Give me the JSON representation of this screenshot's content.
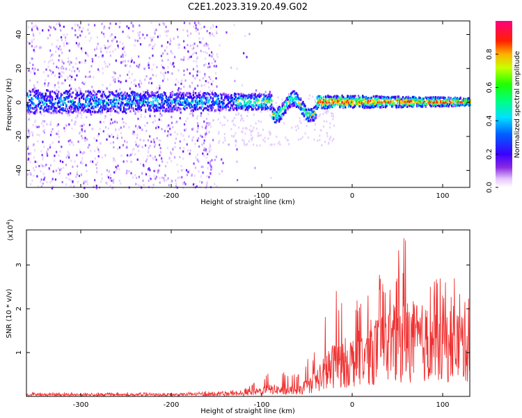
{
  "title": "C2E1.2023.319.20.49.G02",
  "chart_data": [
    {
      "type": "heatmap",
      "xlabel": "Height of straight line (km)",
      "ylabel": "Frequency (Hz)",
      "xlim": [
        -360,
        130
      ],
      "ylim": [
        -50,
        48
      ],
      "xticks": [
        -300,
        -200,
        -100,
        0,
        100
      ],
      "yticks": [
        -40,
        -20,
        0,
        20,
        40
      ],
      "colorbar": {
        "label": "Normalized spectral amplitude",
        "range": [
          0,
          1
        ],
        "ticks": [
          "0.0",
          "0.2",
          "0.4",
          "0.6",
          "0.8"
        ],
        "colormap": "rainbow (white-purple-blue-cyan-green-yellow-red-magenta)"
      },
      "description_of_signal": {
        "center_frequency_hz": 1,
        "band_halfwidth_hz_left": 6,
        "band_halfwidth_hz_right": 2,
        "scattered_noise_x_range_km": [
          -360,
          -150
        ]
      }
    },
    {
      "type": "line",
      "xlabel": "Height of straight line (km)",
      "ylabel": "SNR (10 * v/v)",
      "yscale_label": "(x10",
      "yscale_exp": "4",
      "yscale_close": ")",
      "xlim": [
        -360,
        130
      ],
      "ylim": [
        0,
        3.8
      ],
      "xticks": [
        -300,
        -200,
        -100,
        0,
        100
      ],
      "yticks": [
        1,
        2,
        3
      ],
      "color": "#ef3030",
      "envelope": {
        "x": [
          -360,
          -200,
          -120,
          -90,
          -60,
          -40,
          -20,
          0,
          20,
          40,
          60,
          80,
          100,
          120,
          130
        ],
        "y_mean": [
          0.05,
          0.05,
          0.07,
          0.2,
          0.15,
          0.45,
          0.9,
          1.0,
          1.25,
          1.45,
          1.6,
          1.5,
          1.45,
          1.5,
          1.6
        ],
        "y_peak": [
          0.1,
          0.09,
          0.15,
          0.6,
          0.5,
          1.2,
          2.6,
          2.2,
          2.6,
          3.1,
          3.75,
          3.0,
          2.9,
          3.0,
          2.7
        ]
      }
    }
  ]
}
